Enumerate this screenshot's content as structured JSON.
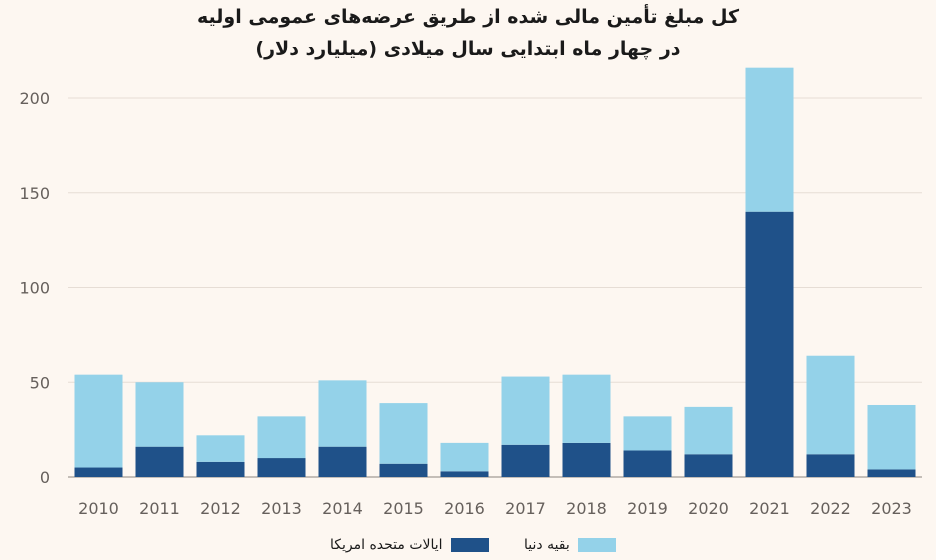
{
  "chart_data": {
    "type": "bar",
    "stacked": true,
    "title_line1": "کل مبلغ تأمین مالی شده از طریق عرضه‌های عمومی اولیه",
    "title_line2": "در چهار ماه ابتدایی سال میلادی (میلیارد دلار)",
    "categories": [
      "2010",
      "2011",
      "2012",
      "2013",
      "2014",
      "2015",
      "2016",
      "2017",
      "2018",
      "2019",
      "2020",
      "2021",
      "2022",
      "2023"
    ],
    "series": [
      {
        "name": "ایالات متحده امریکا",
        "color": "#1f5189",
        "values": [
          5,
          16,
          8,
          10,
          16,
          7,
          3,
          17,
          18,
          14,
          12,
          140,
          12,
          4
        ]
      },
      {
        "name": "بقیه دنیا",
        "color": "#94d2e9",
        "values": [
          49,
          34,
          14,
          22,
          35,
          32,
          15,
          36,
          36,
          18,
          25,
          76,
          52,
          34
        ]
      }
    ],
    "ylim": [
      0,
      220
    ],
    "yticks": [
      0,
      50,
      100,
      150,
      200
    ],
    "grid": true,
    "legend_position": "bottom"
  }
}
